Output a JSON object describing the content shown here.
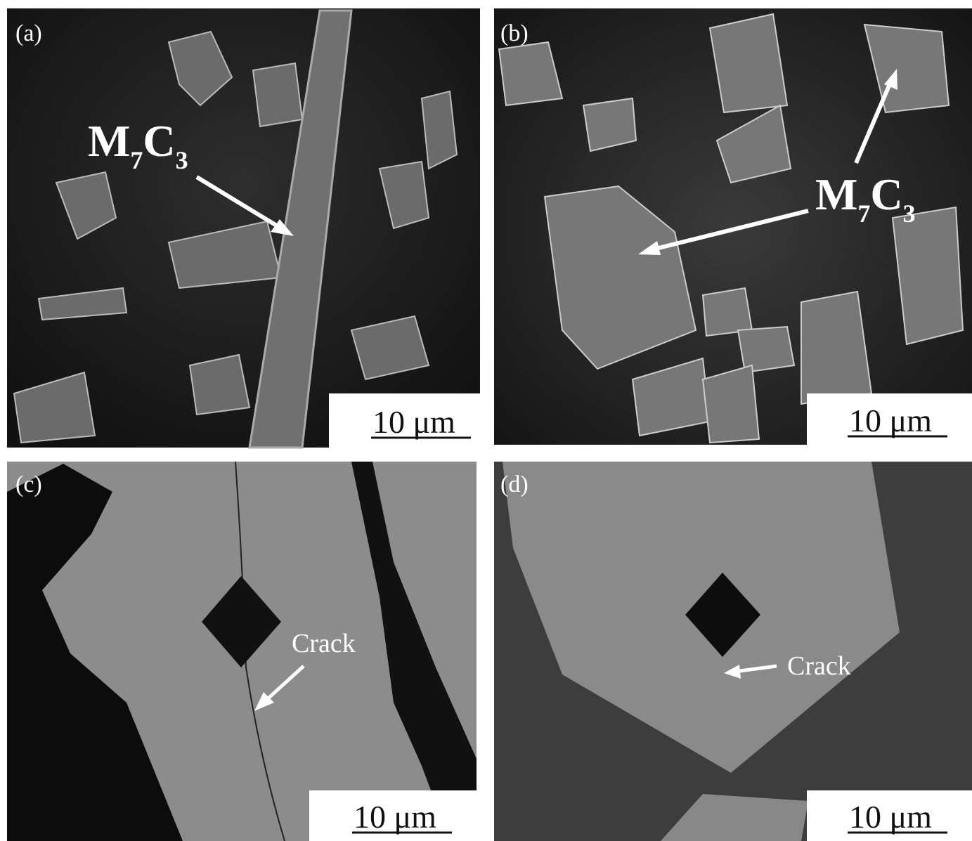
{
  "panels": [
    {
      "label": "(a)",
      "formula": [
        "M",
        "7",
        "C",
        "3"
      ],
      "scale_bar": "10 μm"
    },
    {
      "label": "(b)",
      "formula": [
        "M",
        "7",
        "C",
        "3"
      ],
      "scale_bar": "10 μm"
    },
    {
      "label": "(c)",
      "annotation": "Crack",
      "scale_bar": "10 μm"
    },
    {
      "label": "(d)",
      "annotation": "Crack",
      "scale_bar": "10 μm"
    }
  ]
}
